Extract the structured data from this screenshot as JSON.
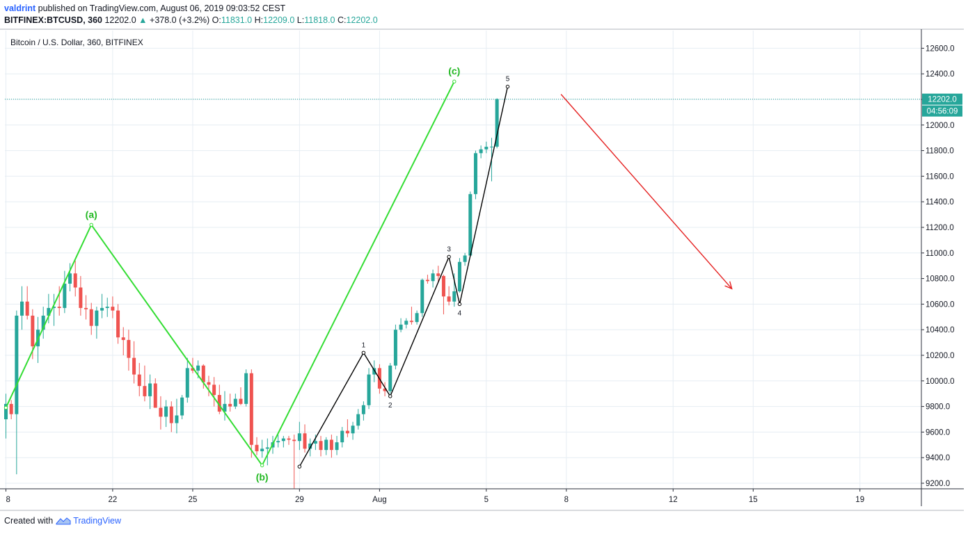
{
  "header": {
    "author": "valdrint",
    "published_text": " published on TradingView.com, August 06, 2019 09:03:52 CEST",
    "symbol": "BITFINEX:BTCUSD, 360",
    "last": "12202.0",
    "change": "+378.0 (+3.2%)",
    "o_label": "O:",
    "o": "11831.0",
    "h_label": "H:",
    "h": "12209.0",
    "l_label": "L:",
    "l": "11818.0",
    "c_label": "C:",
    "c": "12202.0"
  },
  "footer": {
    "created_with": "Created with",
    "brand": "TradingView"
  },
  "colors": {
    "up": "#26a69a",
    "down": "#ef5350",
    "wave_abc": "#33dd33",
    "impulse": "#000000",
    "arrow": "#e52121",
    "price_line": "#26a69a"
  },
  "chart_data": {
    "type": "candlestick",
    "title": "Bitcoin / U.S. Dollar, 360, BITFINEX",
    "ylim": [
      9150,
      12720
    ],
    "y_ticks": [
      9200,
      9400,
      9600,
      9800,
      10000,
      10200,
      10400,
      10600,
      10800,
      11000,
      11200,
      11400,
      11600,
      11800,
      12000,
      12200,
      12400,
      12600
    ],
    "x_ticks": [
      {
        "t": 0,
        "label": "8"
      },
      {
        "t": 20,
        "label": "22"
      },
      {
        "t": 35,
        "label": "25"
      },
      {
        "t": 55,
        "label": "29"
      },
      {
        "t": 70,
        "label": "Aug"
      },
      {
        "t": 90,
        "label": "5"
      },
      {
        "t": 105,
        "label": "8"
      },
      {
        "t": 125,
        "label": "12"
      },
      {
        "t": 140,
        "label": "15"
      },
      {
        "t": 160,
        "label": "19"
      }
    ],
    "grid": true,
    "last_price": {
      "value": 12202.0,
      "label": "12202.0",
      "countdown": "04:56:09"
    },
    "candles": [
      {
        "t": 0,
        "o": 9700,
        "h": 9900,
        "l": 9550,
        "c": 9820
      },
      {
        "t": 1,
        "o": 9820,
        "h": 9850,
        "l": 9700,
        "c": 9740
      },
      {
        "t": 2,
        "o": 9740,
        "h": 10550,
        "l": 9270,
        "c": 10510
      },
      {
        "t": 3,
        "o": 10510,
        "h": 10740,
        "l": 10400,
        "c": 10620
      },
      {
        "t": 4,
        "o": 10620,
        "h": 10740,
        "l": 10480,
        "c": 10510
      },
      {
        "t": 5,
        "o": 10510,
        "h": 10560,
        "l": 10170,
        "c": 10270
      },
      {
        "t": 6,
        "o": 10270,
        "h": 10500,
        "l": 10140,
        "c": 10400
      },
      {
        "t": 7,
        "o": 10400,
        "h": 10580,
        "l": 10330,
        "c": 10510
      },
      {
        "t": 8,
        "o": 10510,
        "h": 10680,
        "l": 10450,
        "c": 10570
      },
      {
        "t": 9,
        "o": 10570,
        "h": 10680,
        "l": 10430,
        "c": 10580
      },
      {
        "t": 10,
        "o": 10580,
        "h": 10740,
        "l": 10510,
        "c": 10570
      },
      {
        "t": 11,
        "o": 10570,
        "h": 10860,
        "l": 10530,
        "c": 10760
      },
      {
        "t": 12,
        "o": 10760,
        "h": 10920,
        "l": 10700,
        "c": 10840
      },
      {
        "t": 13,
        "o": 10840,
        "h": 10940,
        "l": 10660,
        "c": 10730
      },
      {
        "t": 14,
        "o": 10730,
        "h": 10820,
        "l": 10510,
        "c": 10570
      },
      {
        "t": 15,
        "o": 10570,
        "h": 10670,
        "l": 10480,
        "c": 10560
      },
      {
        "t": 16,
        "o": 10560,
        "h": 10610,
        "l": 10360,
        "c": 10430
      },
      {
        "t": 17,
        "o": 10430,
        "h": 10580,
        "l": 10330,
        "c": 10550
      },
      {
        "t": 18,
        "o": 10550,
        "h": 10680,
        "l": 10490,
        "c": 10570
      },
      {
        "t": 19,
        "o": 10570,
        "h": 10650,
        "l": 10500,
        "c": 10580
      },
      {
        "t": 20,
        "o": 10580,
        "h": 10660,
        "l": 10490,
        "c": 10550
      },
      {
        "t": 21,
        "o": 10550,
        "h": 10600,
        "l": 10290,
        "c": 10340
      },
      {
        "t": 22,
        "o": 10340,
        "h": 10420,
        "l": 10200,
        "c": 10320
      },
      {
        "t": 23,
        "o": 10320,
        "h": 10400,
        "l": 10080,
        "c": 10180
      },
      {
        "t": 24,
        "o": 10180,
        "h": 10310,
        "l": 9980,
        "c": 10050
      },
      {
        "t": 25,
        "o": 10050,
        "h": 10140,
        "l": 9880,
        "c": 9960
      },
      {
        "t": 26,
        "o": 9960,
        "h": 10120,
        "l": 9840,
        "c": 9880
      },
      {
        "t": 27,
        "o": 9880,
        "h": 10050,
        "l": 9780,
        "c": 9980
      },
      {
        "t": 28,
        "o": 9980,
        "h": 10020,
        "l": 9820,
        "c": 9790
      },
      {
        "t": 29,
        "o": 9790,
        "h": 9880,
        "l": 9620,
        "c": 9720
      },
      {
        "t": 30,
        "o": 9720,
        "h": 9850,
        "l": 9640,
        "c": 9800
      },
      {
        "t": 31,
        "o": 9800,
        "h": 9840,
        "l": 9600,
        "c": 9670
      },
      {
        "t": 32,
        "o": 9670,
        "h": 9860,
        "l": 9590,
        "c": 9730
      },
      {
        "t": 33,
        "o": 9730,
        "h": 9890,
        "l": 9700,
        "c": 9870
      },
      {
        "t": 34,
        "o": 9870,
        "h": 10180,
        "l": 9830,
        "c": 10100
      },
      {
        "t": 35,
        "o": 10100,
        "h": 10180,
        "l": 10060,
        "c": 10080
      },
      {
        "t": 36,
        "o": 10080,
        "h": 10160,
        "l": 10020,
        "c": 10120
      },
      {
        "t": 37,
        "o": 10120,
        "h": 10130,
        "l": 9940,
        "c": 9990
      },
      {
        "t": 38,
        "o": 9990,
        "h": 10040,
        "l": 9880,
        "c": 9970
      },
      {
        "t": 39,
        "o": 9970,
        "h": 10030,
        "l": 9800,
        "c": 9890
      },
      {
        "t": 40,
        "o": 9890,
        "h": 9970,
        "l": 9740,
        "c": 9760
      },
      {
        "t": 41,
        "o": 9760,
        "h": 9920,
        "l": 9690,
        "c": 9820
      },
      {
        "t": 42,
        "o": 9820,
        "h": 9900,
        "l": 9760,
        "c": 9800
      },
      {
        "t": 43,
        "o": 9800,
        "h": 9900,
        "l": 9780,
        "c": 9860
      },
      {
        "t": 44,
        "o": 9860,
        "h": 9950,
        "l": 9810,
        "c": 9820
      },
      {
        "t": 45,
        "o": 9820,
        "h": 10090,
        "l": 9800,
        "c": 10060
      },
      {
        "t": 46,
        "o": 10060,
        "h": 10090,
        "l": 9400,
        "c": 9500
      },
      {
        "t": 47,
        "o": 9500,
        "h": 9560,
        "l": 9420,
        "c": 9450
      },
      {
        "t": 48,
        "o": 9450,
        "h": 9540,
        "l": 9400,
        "c": 9470
      },
      {
        "t": 49,
        "o": 9470,
        "h": 9550,
        "l": 9340,
        "c": 9480
      },
      {
        "t": 50,
        "o": 9480,
        "h": 9570,
        "l": 9430,
        "c": 9520
      },
      {
        "t": 51,
        "o": 9520,
        "h": 9580,
        "l": 9480,
        "c": 9530
      },
      {
        "t": 52,
        "o": 9530,
        "h": 9570,
        "l": 9480,
        "c": 9550
      },
      {
        "t": 53,
        "o": 9550,
        "h": 9570,
        "l": 9500,
        "c": 9540
      },
      {
        "t": 54,
        "o": 9540,
        "h": 9580,
        "l": 9160,
        "c": 9530
      },
      {
        "t": 55,
        "o": 9530,
        "h": 9680,
        "l": 9460,
        "c": 9590
      },
      {
        "t": 56,
        "o": 9590,
        "h": 9660,
        "l": 9440,
        "c": 9470
      },
      {
        "t": 57,
        "o": 9470,
        "h": 9550,
        "l": 9410,
        "c": 9510
      },
      {
        "t": 58,
        "o": 9510,
        "h": 9580,
        "l": 9460,
        "c": 9530
      },
      {
        "t": 59,
        "o": 9530,
        "h": 9570,
        "l": 9410,
        "c": 9460
      },
      {
        "t": 60,
        "o": 9460,
        "h": 9560,
        "l": 9420,
        "c": 9540
      },
      {
        "t": 61,
        "o": 9540,
        "h": 9580,
        "l": 9400,
        "c": 9460
      },
      {
        "t": 62,
        "o": 9460,
        "h": 9570,
        "l": 9420,
        "c": 9520
      },
      {
        "t": 63,
        "o": 9520,
        "h": 9640,
        "l": 9480,
        "c": 9610
      },
      {
        "t": 64,
        "o": 9610,
        "h": 9700,
        "l": 9560,
        "c": 9590
      },
      {
        "t": 65,
        "o": 9590,
        "h": 9680,
        "l": 9540,
        "c": 9650
      },
      {
        "t": 66,
        "o": 9650,
        "h": 9780,
        "l": 9620,
        "c": 9740
      },
      {
        "t": 67,
        "o": 9740,
        "h": 9840,
        "l": 9690,
        "c": 9810
      },
      {
        "t": 68,
        "o": 9810,
        "h": 10100,
        "l": 9780,
        "c": 10050
      },
      {
        "t": 69,
        "o": 10050,
        "h": 10160,
        "l": 9990,
        "c": 10100
      },
      {
        "t": 70,
        "o": 10100,
        "h": 10130,
        "l": 9900,
        "c": 9940
      },
      {
        "t": 71,
        "o": 9940,
        "h": 9990,
        "l": 9880,
        "c": 9920
      },
      {
        "t": 72,
        "o": 9920,
        "h": 10140,
        "l": 9900,
        "c": 10120
      },
      {
        "t": 73,
        "o": 10120,
        "h": 10440,
        "l": 10090,
        "c": 10400
      },
      {
        "t": 74,
        "o": 10400,
        "h": 10490,
        "l": 10380,
        "c": 10440
      },
      {
        "t": 75,
        "o": 10440,
        "h": 10490,
        "l": 10410,
        "c": 10470
      },
      {
        "t": 76,
        "o": 10470,
        "h": 10580,
        "l": 10440,
        "c": 10460
      },
      {
        "t": 77,
        "o": 10460,
        "h": 10550,
        "l": 10440,
        "c": 10530
      },
      {
        "t": 78,
        "o": 10530,
        "h": 10800,
        "l": 10500,
        "c": 10790
      },
      {
        "t": 79,
        "o": 10790,
        "h": 10830,
        "l": 10760,
        "c": 10780
      },
      {
        "t": 80,
        "o": 10780,
        "h": 10870,
        "l": 10730,
        "c": 10840
      },
      {
        "t": 81,
        "o": 10840,
        "h": 10900,
        "l": 10770,
        "c": 10820
      },
      {
        "t": 82,
        "o": 10820,
        "h": 10830,
        "l": 10520,
        "c": 10660
      },
      {
        "t": 83,
        "o": 10660,
        "h": 10740,
        "l": 10590,
        "c": 10620
      },
      {
        "t": 84,
        "o": 10620,
        "h": 10840,
        "l": 10580,
        "c": 10700
      },
      {
        "t": 85,
        "o": 10700,
        "h": 10960,
        "l": 10690,
        "c": 10930
      },
      {
        "t": 86,
        "o": 10930,
        "h": 11000,
        "l": 10900,
        "c": 10980
      },
      {
        "t": 87,
        "o": 10980,
        "h": 11480,
        "l": 10970,
        "c": 11460
      },
      {
        "t": 88,
        "o": 11460,
        "h": 11800,
        "l": 11420,
        "c": 11780
      },
      {
        "t": 89,
        "o": 11780,
        "h": 11840,
        "l": 11740,
        "c": 11810
      },
      {
        "t": 90,
        "o": 11810,
        "h": 11870,
        "l": 11780,
        "c": 11830
      },
      {
        "t": 91,
        "o": 11830,
        "h": 11900,
        "l": 11560,
        "c": 11831
      },
      {
        "t": 92,
        "o": 11831,
        "h": 12209,
        "l": 11818,
        "c": 12202
      }
    ],
    "annotations": {
      "abc_wave": {
        "points": [
          {
            "t": 0,
            "y": 9790,
            "label": ""
          },
          {
            "t": 16,
            "y": 11220,
            "label": "(a)"
          },
          {
            "t": 48,
            "y": 9340,
            "label": "(b)"
          },
          {
            "t": 84,
            "y": 12340,
            "label": "(c)"
          }
        ]
      },
      "impulse_wave": {
        "points": [
          {
            "t": 55,
            "y": 9330,
            "label": ""
          },
          {
            "t": 67,
            "y": 10220,
            "label": "1"
          },
          {
            "t": 72,
            "y": 9880,
            "label": "2"
          },
          {
            "t": 83,
            "y": 10970,
            "label": "3"
          },
          {
            "t": 85,
            "y": 10600,
            "label": "4"
          },
          {
            "t": 94,
            "y": 12300,
            "label": "5"
          }
        ]
      },
      "arrow": {
        "from": {
          "t": 104,
          "y": 12240
        },
        "to": {
          "t": 136,
          "y": 10720
        }
      }
    }
  }
}
